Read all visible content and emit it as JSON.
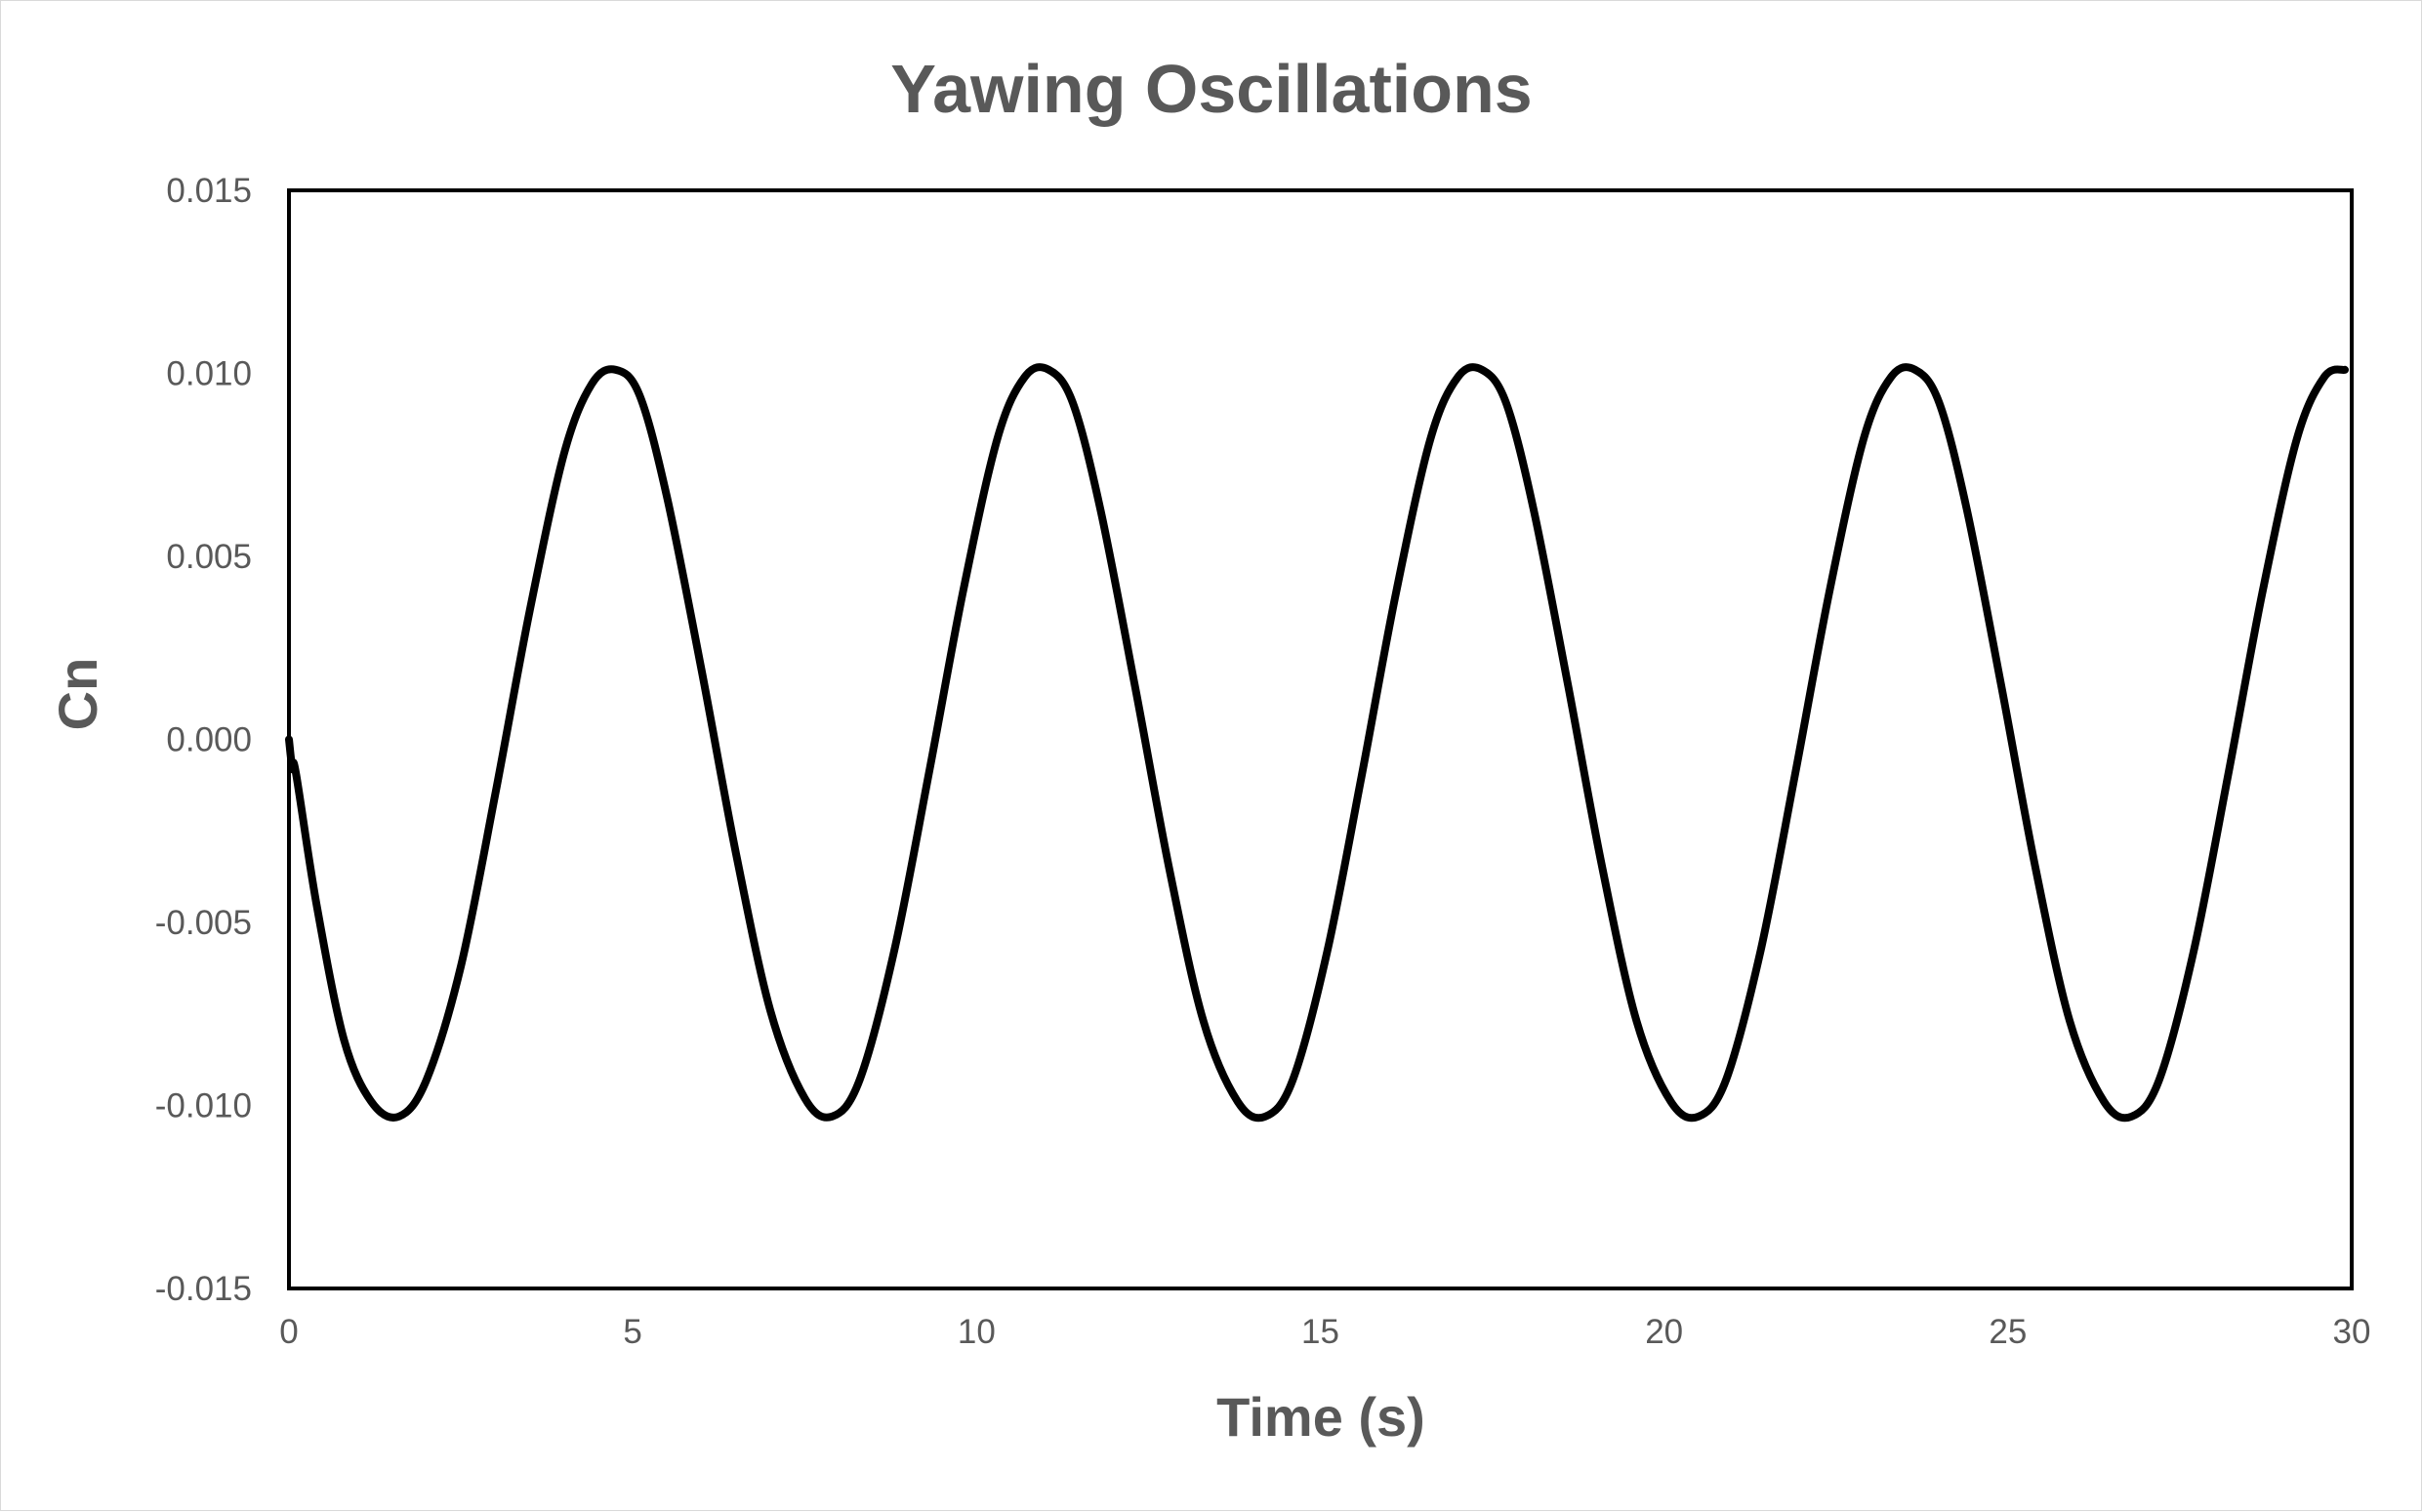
{
  "chart_data": {
    "type": "line",
    "title": "Yawing Oscillations",
    "xlabel": "Time (s)",
    "ylabel": "Cn",
    "xlim": [
      0,
      30
    ],
    "ylim": [
      -0.015,
      0.015
    ],
    "x_ticks": [
      "0",
      "5",
      "10",
      "15",
      "20",
      "25",
      "30"
    ],
    "y_ticks": [
      "0.015",
      "0.010",
      "0.005",
      "0.000",
      "-0.005",
      "-0.010",
      "-0.015"
    ],
    "grid": false,
    "legend": "none",
    "line_color": "#000000",
    "series": [
      {
        "x": [
          0,
          0.05,
          0.1,
          0.4,
          0.8,
          1.2,
          1.6,
          2.0,
          2.5,
          3.0,
          3.5,
          4.0,
          4.4,
          4.75,
          5.1,
          5.5,
          6.0,
          6.5,
          7.0,
          7.5,
          7.9,
          8.3,
          8.8,
          9.3,
          9.8,
          10.3,
          10.7,
          11.05,
          11.4,
          11.8,
          12.3,
          12.8,
          13.3,
          13.8,
          14.2,
          14.6,
          15.1,
          15.6,
          16.1,
          16.6,
          17.0,
          17.35,
          17.7,
          18.1,
          18.6,
          19.1,
          19.6,
          20.1,
          20.5,
          20.9,
          21.4,
          21.9,
          22.4,
          22.9,
          23.3,
          23.65,
          24.0,
          24.4,
          24.9,
          25.4,
          25.9,
          26.4,
          26.8,
          27.2,
          27.7,
          28.2,
          28.7,
          29.2,
          29.6,
          29.9
        ],
        "y": [
          0.0,
          -0.0008,
          -0.0009,
          -0.0045,
          -0.0082,
          -0.0099,
          -0.0103,
          -0.0093,
          -0.0062,
          -0.0015,
          0.0035,
          0.0078,
          0.0097,
          0.0101,
          0.0094,
          0.0066,
          0.0019,
          -0.0031,
          -0.0074,
          -0.0098,
          -0.0103,
          -0.0093,
          -0.0058,
          -0.001,
          0.004,
          0.0082,
          0.0099,
          0.0101,
          0.0092,
          0.0063,
          0.0015,
          -0.0035,
          -0.0077,
          -0.0099,
          -0.0103,
          -0.0093,
          -0.0058,
          -0.001,
          0.004,
          0.0082,
          0.0099,
          0.0101,
          0.0092,
          0.0063,
          0.0015,
          -0.0035,
          -0.0077,
          -0.0099,
          -0.0103,
          -0.0093,
          -0.0058,
          -0.001,
          0.004,
          0.0082,
          0.0099,
          0.0101,
          0.0092,
          0.0063,
          0.0015,
          -0.0035,
          -0.0077,
          -0.0099,
          -0.0103,
          -0.0093,
          -0.0058,
          -0.001,
          0.004,
          0.0082,
          0.0099,
          0.0101
        ]
      }
    ]
  }
}
